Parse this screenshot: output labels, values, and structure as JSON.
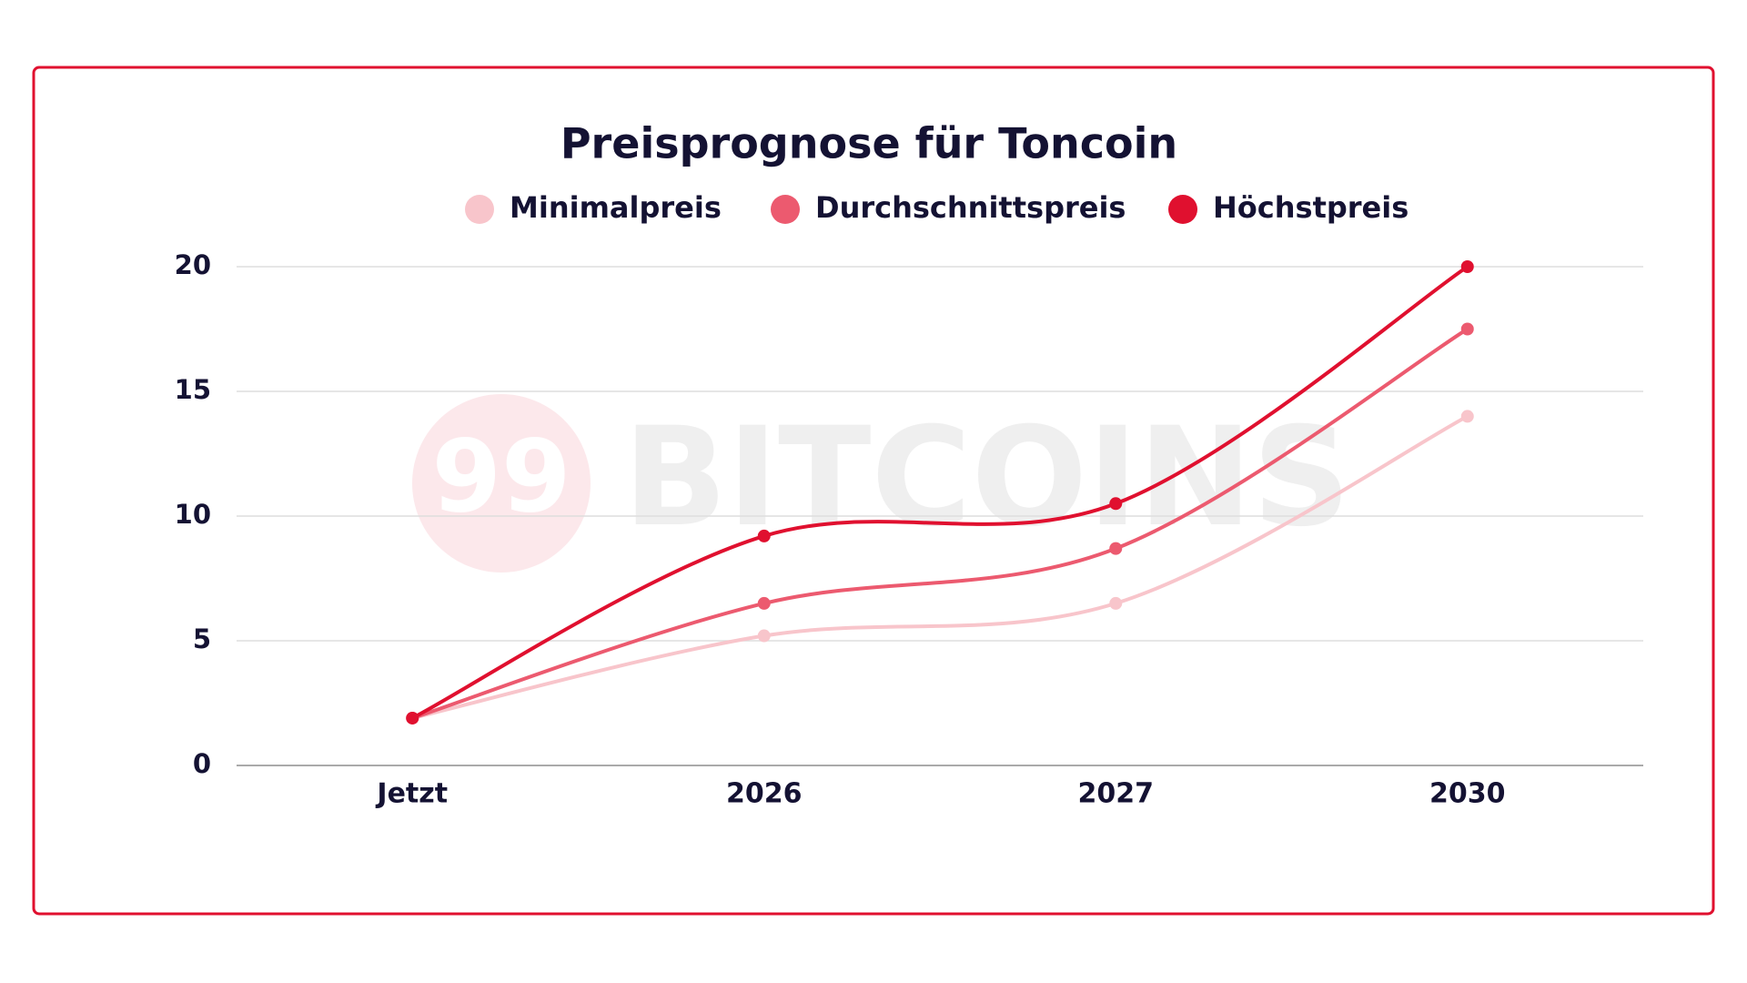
{
  "chart_data": {
    "type": "line",
    "title": "Preisprognose für Toncoin",
    "watermark": [
      "99",
      "BITCOINS"
    ],
    "categories": [
      "Jetzt",
      "2026",
      "2027",
      "2030"
    ],
    "series": [
      {
        "name": "Minimalpreis",
        "color": "#f8c5cb",
        "values": [
          1.9,
          5.2,
          6.5,
          14
        ]
      },
      {
        "name": "Durchschnittspreis",
        "color": "#ec5a6f",
        "values": [
          1.9,
          6.5,
          8.7,
          17.5
        ]
      },
      {
        "name": "Höchstpreis",
        "color": "#e0102f",
        "values": [
          1.9,
          9.2,
          10.5,
          20
        ]
      }
    ],
    "ylim": [
      0,
      20
    ],
    "yticks": [
      0,
      5,
      10,
      15,
      20
    ],
    "grid": true,
    "legend": "top",
    "smooth": true
  }
}
